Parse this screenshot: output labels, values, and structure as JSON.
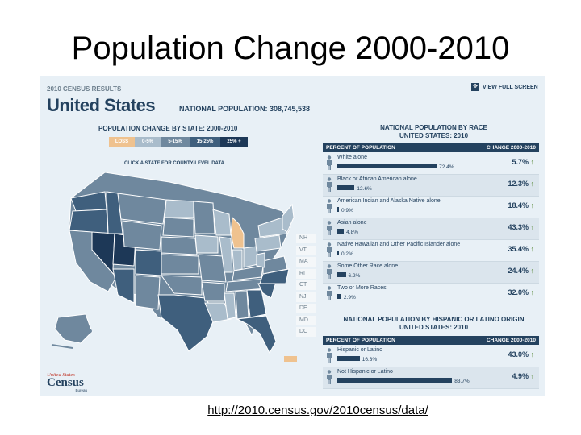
{
  "slide_title": "Population Change 2000-2010",
  "footer_url": "http://2010.census.gov/2010census/data/",
  "panel": {
    "results_label": "2010 CENSUS RESULTS",
    "country": "United States",
    "national_population": "NATIONAL POPULATION: 308,745,538",
    "view_full_screen": "VIEW FULL SCREEN",
    "map_title": "POPULATION CHANGE BY STATE: 2000-2010",
    "click_text": "CLICK A STATE FOR COUNTY-LEVEL DATA",
    "legend": [
      {
        "label": "LOSS",
        "color": "#efc28f",
        "text_color": "#ffffff"
      },
      {
        "label": "0-5%",
        "color": "#a9bccb",
        "text_color": "#ffffff"
      },
      {
        "label": "5-15%",
        "color": "#6f889e",
        "text_color": "#ffffff"
      },
      {
        "label": "15-25%",
        "color": "#3f5f7d",
        "text_color": "#ffffff"
      },
      {
        "label": "25% +",
        "color": "#1d3857",
        "text_color": "#ffffff"
      }
    ],
    "small_states": [
      "NH",
      "VT",
      "MA",
      "RI",
      "CT",
      "NJ",
      "DE",
      "MD",
      "DC"
    ],
    "logo": {
      "line1": "United States",
      "line2": "Census",
      "line3": "Bureau"
    }
  },
  "chart_data": [
    {
      "type": "bar",
      "title": "NATIONAL POPULATION BY RACE",
      "subtitle": "UNITED STATES: 2010",
      "header_left": "PERCENT OF POPULATION",
      "header_right": "CHANGE 2000-2010",
      "categories": [
        "White alone",
        "Black or African American alone",
        "American Indian and Alaska Native alone",
        "Asian alone",
        "Native Hawaiian and Other Pacific Islander alone",
        "Some Other Race alone",
        "Two or More Races"
      ],
      "values": [
        72.4,
        12.6,
        0.9,
        4.8,
        0.2,
        6.2,
        2.9
      ],
      "value_labels": [
        "72.4%",
        "12.6%",
        "0.9%",
        "4.8%",
        "0.2%",
        "6.2%",
        "2.9%"
      ],
      "change": [
        5.7,
        12.3,
        18.4,
        43.3,
        35.4,
        24.4,
        32.0
      ],
      "change_labels": [
        "5.7%",
        "12.3%",
        "18.4%",
        "43.3%",
        "35.4%",
        "24.4%",
        "32.0%"
      ],
      "xlim": [
        0,
        100
      ]
    },
    {
      "type": "bar",
      "title": "NATIONAL POPULATION BY HISPANIC OR LATINO ORIGIN",
      "subtitle": "UNITED STATES: 2010",
      "header_left": "PERCENT OF POPULATION",
      "header_right": "CHANGE 2000-2010",
      "categories": [
        "Hispanic or Latino",
        "Not Hispanic or Latino"
      ],
      "values": [
        16.3,
        83.7
      ],
      "value_labels": [
        "16.3%",
        "83.7%"
      ],
      "change": [
        43.0,
        4.9
      ],
      "change_labels": [
        "43.0%",
        "4.9%"
      ],
      "xlim": [
        0,
        100
      ]
    }
  ],
  "colors": {
    "navy": "#24425f",
    "up_arrow": "#5a8a3c",
    "panel_bg": "#e8f0f6"
  }
}
